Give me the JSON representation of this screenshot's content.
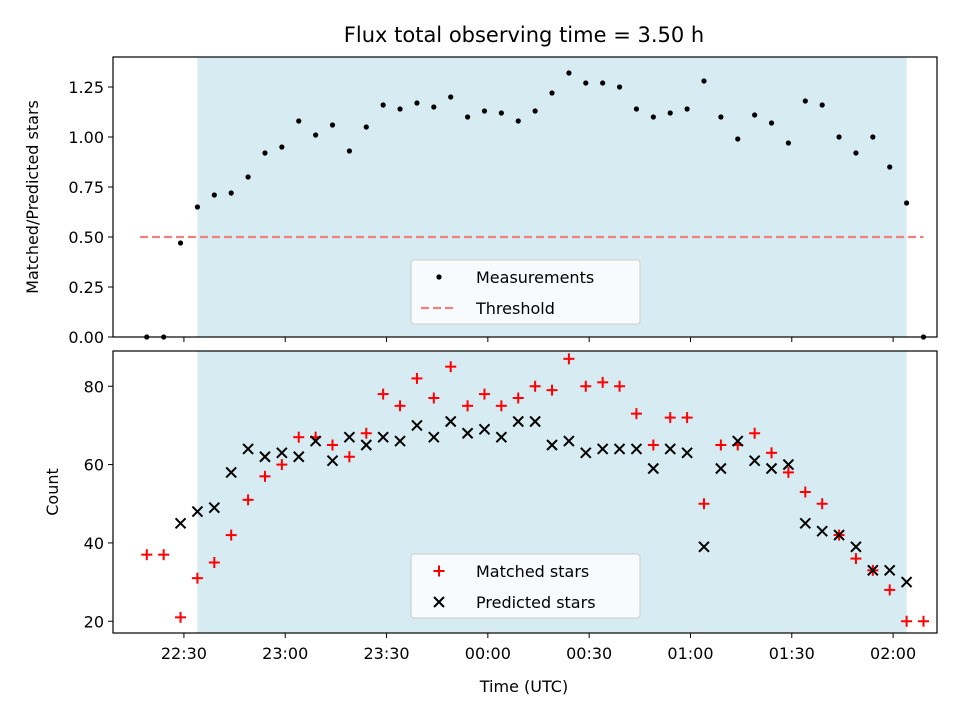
{
  "title": "Flux total observing time = 3.50 h",
  "colors": {
    "shade": "#add8e6",
    "threshold": "#f08080",
    "matched": "#ff0000",
    "predicted": "#000000",
    "measure": "#000000"
  },
  "chart_data": [
    {
      "type": "scatter",
      "title": "Flux total observing time = 3.50 h",
      "ylabel": "Matched/Predicted stars",
      "xlabel": "",
      "xlim": [
        "22:09",
        "02:13"
      ],
      "ylim": [
        0,
        1.4
      ],
      "yticks": [
        "0.00",
        "0.25",
        "0.50",
        "0.75",
        "1.00",
        "1.25"
      ],
      "shaded_span": [
        "22:34",
        "02:04"
      ],
      "legend": {
        "position": "lower-center",
        "entries": [
          "Measurements",
          "Threshold"
        ]
      },
      "threshold": {
        "name": "Threshold",
        "y": 0.5,
        "x": [
          "22:17",
          "02:09"
        ]
      },
      "series": [
        {
          "name": "Measurements",
          "x": [
            "22:19",
            "22:24",
            "22:29",
            "22:34",
            "22:39",
            "22:44",
            "22:49",
            "22:54",
            "22:59",
            "23:04",
            "23:09",
            "23:14",
            "23:19",
            "23:24",
            "23:29",
            "23:34",
            "23:39",
            "23:44",
            "23:49",
            "23:54",
            "23:59",
            "00:04",
            "00:09",
            "00:14",
            "00:19",
            "00:24",
            "00:29",
            "00:34",
            "00:39",
            "00:44",
            "00:49",
            "00:54",
            "00:59",
            "01:04",
            "01:09",
            "01:14",
            "01:19",
            "01:24",
            "01:29",
            "01:34",
            "01:39",
            "01:44",
            "01:49",
            "01:54",
            "01:59",
            "02:04",
            "02:09"
          ],
          "y": [
            0,
            0,
            0.47,
            0.65,
            0.71,
            0.72,
            0.8,
            0.92,
            0.95,
            1.08,
            1.01,
            1.06,
            0.93,
            1.05,
            1.16,
            1.14,
            1.17,
            1.15,
            1.2,
            1.1,
            1.13,
            1.12,
            1.08,
            1.13,
            1.22,
            1.32,
            1.27,
            1.27,
            1.25,
            1.14,
            1.1,
            1.12,
            1.14,
            1.28,
            1.1,
            0.99,
            1.11,
            1.07,
            0.97,
            1.18,
            1.16,
            1.0,
            0.92,
            1.0,
            0.85,
            0.67,
            0
          ]
        }
      ]
    },
    {
      "type": "scatter",
      "xlabel": "Time (UTC)",
      "ylabel": "Count",
      "xlim": [
        "22:09",
        "02:13"
      ],
      "ylim": [
        17,
        89
      ],
      "xticks": [
        "22:30",
        "23:00",
        "23:30",
        "00:00",
        "00:30",
        "01:00",
        "01:30",
        "02:00"
      ],
      "yticks": [
        "20",
        "40",
        "60",
        "80"
      ],
      "shaded_span": [
        "22:34",
        "02:04"
      ],
      "legend": {
        "position": "lower-center",
        "entries": [
          "Matched stars",
          "Predicted stars"
        ]
      },
      "series": [
        {
          "name": "Matched stars",
          "x": [
            "22:19",
            "22:24",
            "22:29",
            "22:34",
            "22:39",
            "22:44",
            "22:49",
            "22:54",
            "22:59",
            "23:04",
            "23:09",
            "23:14",
            "23:19",
            "23:24",
            "23:29",
            "23:34",
            "23:39",
            "23:44",
            "23:49",
            "23:54",
            "23:59",
            "00:04",
            "00:09",
            "00:14",
            "00:19",
            "00:24",
            "00:29",
            "00:34",
            "00:39",
            "00:44",
            "00:49",
            "00:54",
            "00:59",
            "01:04",
            "01:09",
            "01:14",
            "01:19",
            "01:24",
            "01:29",
            "01:34",
            "01:39",
            "01:44",
            "01:49",
            "01:54",
            "01:59",
            "02:04",
            "02:09"
          ],
          "y": [
            37,
            37,
            21,
            31,
            35,
            42,
            51,
            57,
            60,
            67,
            67,
            65,
            62,
            68,
            78,
            75,
            82,
            77,
            85,
            75,
            78,
            75,
            77,
            80,
            79,
            87,
            80,
            81,
            80,
            73,
            65,
            72,
            72,
            50,
            65,
            65,
            68,
            63,
            58,
            53,
            50,
            42,
            36,
            33,
            28,
            20,
            20
          ]
        },
        {
          "name": "Predicted stars",
          "x": [
            "22:29",
            "22:34",
            "22:39",
            "22:44",
            "22:49",
            "22:54",
            "22:59",
            "23:04",
            "23:09",
            "23:14",
            "23:19",
            "23:24",
            "23:29",
            "23:34",
            "23:39",
            "23:44",
            "23:49",
            "23:54",
            "23:59",
            "00:04",
            "00:09",
            "00:14",
            "00:19",
            "00:24",
            "00:29",
            "00:34",
            "00:39",
            "00:44",
            "00:49",
            "00:54",
            "00:59",
            "01:04",
            "01:09",
            "01:14",
            "01:19",
            "01:24",
            "01:29",
            "01:34",
            "01:39",
            "01:44",
            "01:49",
            "01:54",
            "01:59",
            "02:04"
          ],
          "y": [
            45,
            48,
            49,
            58,
            64,
            62,
            63,
            62,
            66,
            61,
            67,
            65,
            67,
            66,
            70,
            67,
            71,
            68,
            69,
            67,
            71,
            71,
            65,
            66,
            63,
            64,
            64,
            64,
            59,
            64,
            63,
            39,
            59,
            66,
            61,
            59,
            60,
            45,
            43,
            42,
            39,
            33,
            33,
            30
          ]
        }
      ]
    }
  ]
}
